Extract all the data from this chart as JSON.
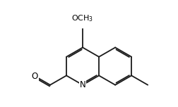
{
  "bg_color": "#ffffff",
  "bond_color": "#1a1a1a",
  "text_color": "#000000",
  "line_width": 1.3,
  "font_size": 8.5,
  "fig_width": 2.52,
  "fig_height": 1.52,
  "dpi": 100,
  "sqrt3": 1.7320508075688772
}
